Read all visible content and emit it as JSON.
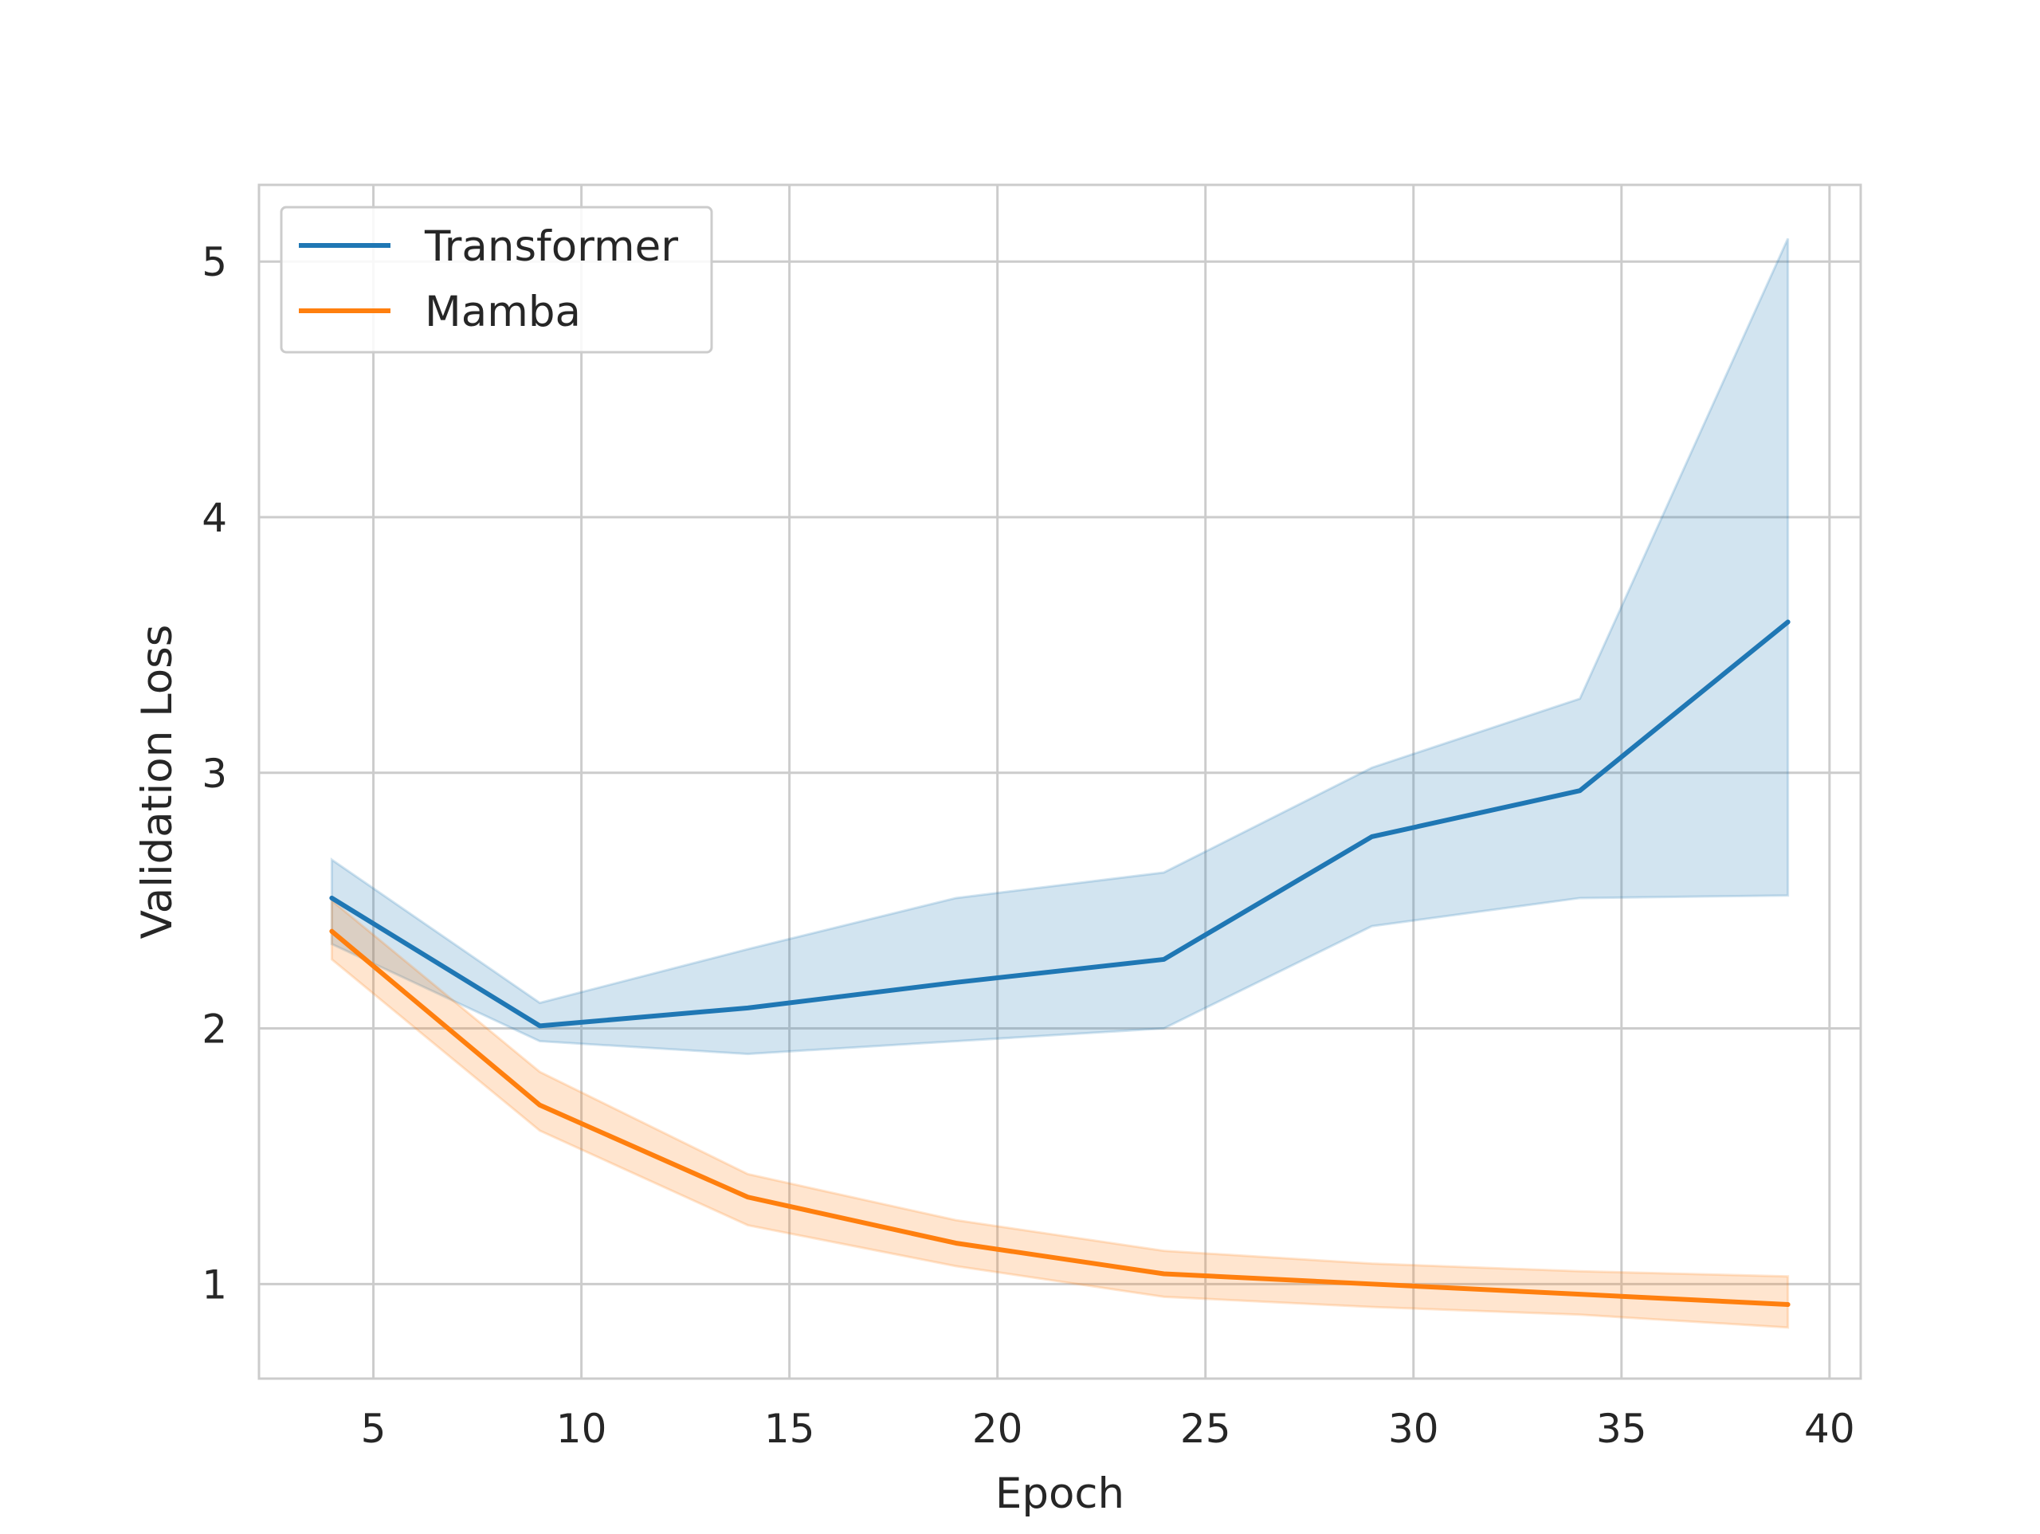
{
  "chart_data": {
    "type": "line",
    "title": "",
    "xlabel": "Epoch",
    "ylabel": "Validation Loss",
    "xlim": [
      2.25,
      40.75
    ],
    "ylim": [
      0.63,
      5.3
    ],
    "xticks": [
      5,
      10,
      15,
      20,
      25,
      30,
      35,
      40
    ],
    "yticks": [
      1,
      2,
      3,
      4,
      5
    ],
    "grid": true,
    "legend_position": "top-left",
    "x": [
      4,
      9,
      14,
      19,
      24,
      29,
      34,
      39
    ],
    "series": [
      {
        "name": "Transformer",
        "color": "#1f77b4",
        "values": [
          2.51,
          2.01,
          2.08,
          2.18,
          2.27,
          2.75,
          2.93,
          3.59
        ],
        "lower": [
          2.33,
          1.95,
          1.9,
          1.95,
          2.0,
          2.4,
          2.51,
          2.52
        ],
        "upper": [
          2.66,
          2.1,
          2.31,
          2.51,
          2.61,
          3.02,
          3.29,
          5.09
        ]
      },
      {
        "name": "Mamba",
        "color": "#ff7f0e",
        "values": [
          2.38,
          1.7,
          1.34,
          1.16,
          1.04,
          1.0,
          0.96,
          0.92
        ],
        "lower": [
          2.27,
          1.6,
          1.23,
          1.07,
          0.95,
          0.91,
          0.88,
          0.83
        ],
        "upper": [
          2.5,
          1.83,
          1.43,
          1.25,
          1.13,
          1.08,
          1.05,
          1.03
        ]
      }
    ]
  }
}
